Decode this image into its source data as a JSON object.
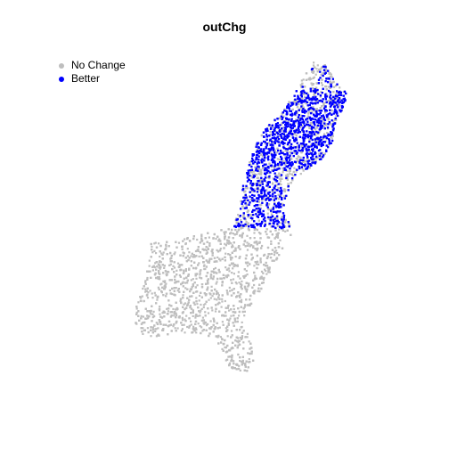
{
  "title": "outChg",
  "legend": {
    "items": [
      {
        "label": "No Change",
        "color": "#bebebe"
      },
      {
        "label": "Better",
        "color": "#0000ff"
      }
    ]
  },
  "chart_data": {
    "type": "scatter",
    "title": "outChg",
    "series": [
      {
        "name": "No Change",
        "color": "#bebebe"
      },
      {
        "name": "Better",
        "color": "#0000ff"
      }
    ],
    "legend_position": "top-left",
    "grid": false
  }
}
